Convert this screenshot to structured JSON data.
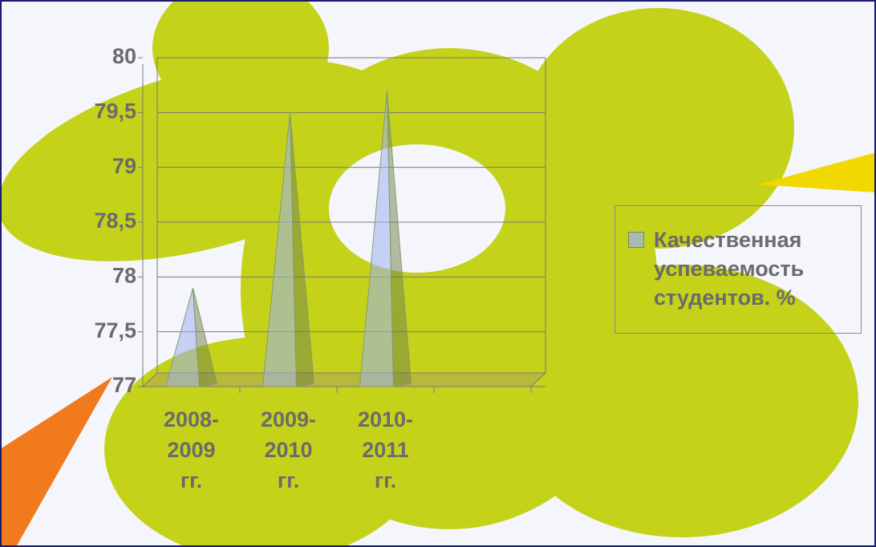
{
  "chart_data": {
    "type": "pyramid",
    "categories": [
      "2008-2009 гг.",
      "2009-2010 гг.",
      "2010-2011 гг.",
      null
    ],
    "series": [
      {
        "name": "Качественная успеваемость студентов. %",
        "color": "#9fb0f2",
        "values": [
          77.9,
          79.5,
          79.7,
          null
        ]
      }
    ],
    "ylim": [
      77,
      80
    ],
    "yticks": [
      77,
      {
        "value": 77.5,
        "label": "77,5"
      },
      78,
      {
        "value": 78.5,
        "label": "78,5"
      },
      79,
      {
        "value": 79.5,
        "label": "79,5"
      },
      80
    ],
    "grid": true,
    "legend": "right"
  }
}
